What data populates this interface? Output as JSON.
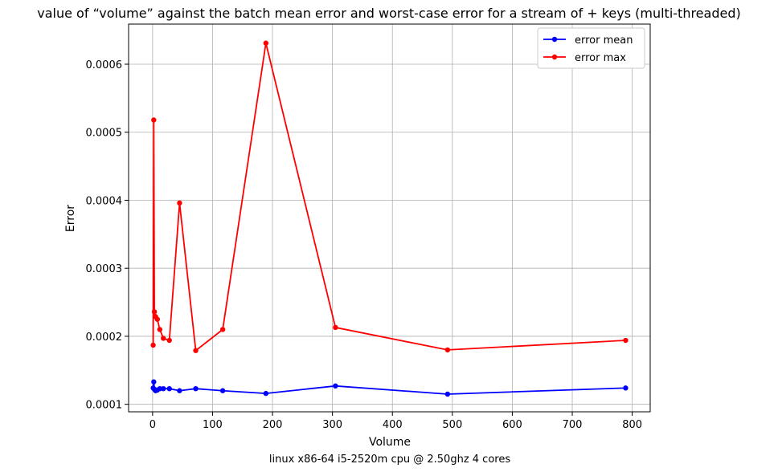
{
  "chart_data": {
    "type": "line",
    "title": "value of “volume” against the batch mean error and worst-case error for a stream of + keys (multi-threaded)",
    "xlabel": "Volume",
    "ylabel": "Error",
    "caption": "linux x86-64 i5-2520m cpu @ 2.50ghz 4 cores",
    "xlim": [
      -40,
      830
    ],
    "ylim": [
      8.9e-05,
      0.000659
    ],
    "x_ticks": [
      0,
      100,
      200,
      300,
      400,
      500,
      600,
      700,
      800
    ],
    "x_tick_labels": [
      "0",
      "100",
      "200",
      "300",
      "400",
      "500",
      "600",
      "700",
      "800"
    ],
    "y_ticks": [
      0.0001,
      0.0002,
      0.0003,
      0.0004,
      0.0005,
      0.0006
    ],
    "y_tick_labels": [
      "0.0001",
      "0.0002",
      "0.0003",
      "0.0004",
      "0.0005",
      "0.0006"
    ],
    "grid": true,
    "legend_position": "top-right",
    "x": [
      1,
      2,
      3,
      5,
      8,
      12,
      18,
      28,
      45,
      72,
      117,
      189,
      305,
      492,
      789
    ],
    "series": [
      {
        "name": "error mean",
        "color": "#0000ff",
        "values": [
          0.000124,
          0.000133,
          0.000122,
          0.00012,
          0.000121,
          0.000123,
          0.000123,
          0.000123,
          0.00012,
          0.000123,
          0.00012,
          0.000116,
          0.000127,
          0.000115,
          0.000124
        ]
      },
      {
        "name": "error max",
        "color": "#ff0000",
        "values": [
          0.000187,
          0.000518,
          0.000236,
          0.000229,
          0.000225,
          0.00021,
          0.000197,
          0.000194,
          0.000396,
          0.000179,
          0.00021,
          0.000631,
          0.000213,
          0.00018,
          0.000194
        ]
      }
    ]
  }
}
